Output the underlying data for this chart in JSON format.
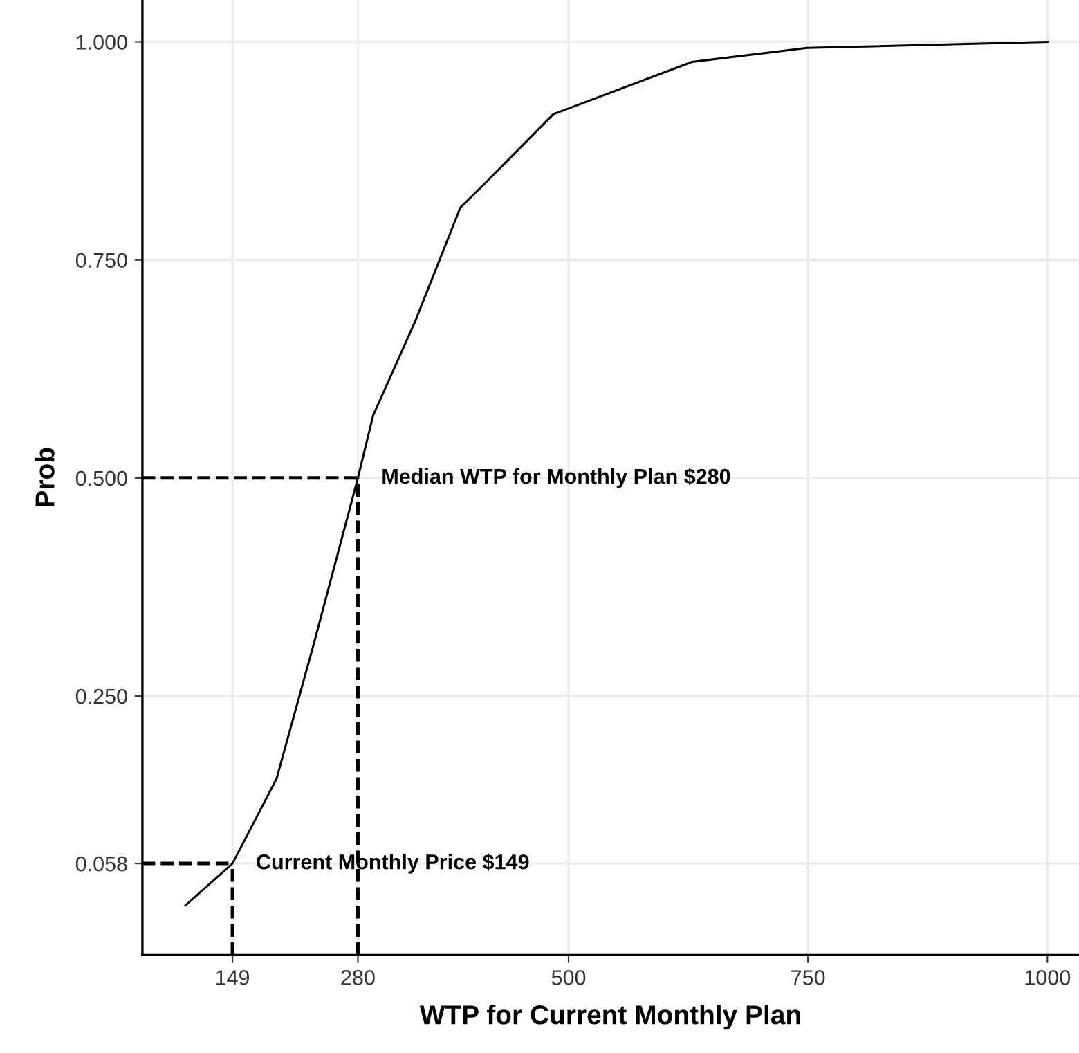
{
  "chart_data": {
    "type": "line",
    "xlabel": "WTP for Current Monthly Plan",
    "ylabel": "Prob",
    "x": [
      100,
      149,
      195,
      234,
      280,
      296,
      340,
      387,
      412,
      484,
      629,
      749,
      1000
    ],
    "series": [
      {
        "color": "#000000",
        "values": [
          0.01,
          0.058,
          0.155,
          0.31,
          0.5,
          0.572,
          0.68,
          0.81,
          0.837,
          0.917,
          0.977,
          0.993,
          1.0
        ]
      }
    ],
    "xlim": [
      55,
      1033
    ],
    "ylim": [
      -0.047,
      1.048
    ],
    "xticks": [
      149,
      280,
      500,
      750,
      1000
    ],
    "yticks": [
      {
        "value": 0.058,
        "label": "0.058"
      },
      {
        "value": 0.25,
        "label": "0.250"
      },
      {
        "value": 0.5,
        "label": "0.500"
      },
      {
        "value": 0.75,
        "label": "0.750"
      },
      {
        "value": 1.0,
        "label": "1.000"
      }
    ],
    "ref_lines": [
      {
        "axis": "x",
        "value": 149,
        "line_style": "dashed",
        "color": "#000000"
      },
      {
        "axis": "y",
        "value": 0.058,
        "line_style": "dashed",
        "color": "#000000"
      },
      {
        "axis": "x",
        "value": 280,
        "line_style": "dashed",
        "color": "#000000"
      },
      {
        "axis": "y",
        "value": 0.5,
        "line_style": "dashed",
        "color": "#000000"
      }
    ],
    "annotations": [
      {
        "text": "Current Monthly Price $149",
        "x": 149,
        "y": 0.058
      },
      {
        "text": "Median WTP for Monthly Plan $280",
        "x": 280,
        "y": 0.5
      }
    ],
    "grid": true,
    "marker": "none",
    "line_style": "solid",
    "legend": false
  }
}
